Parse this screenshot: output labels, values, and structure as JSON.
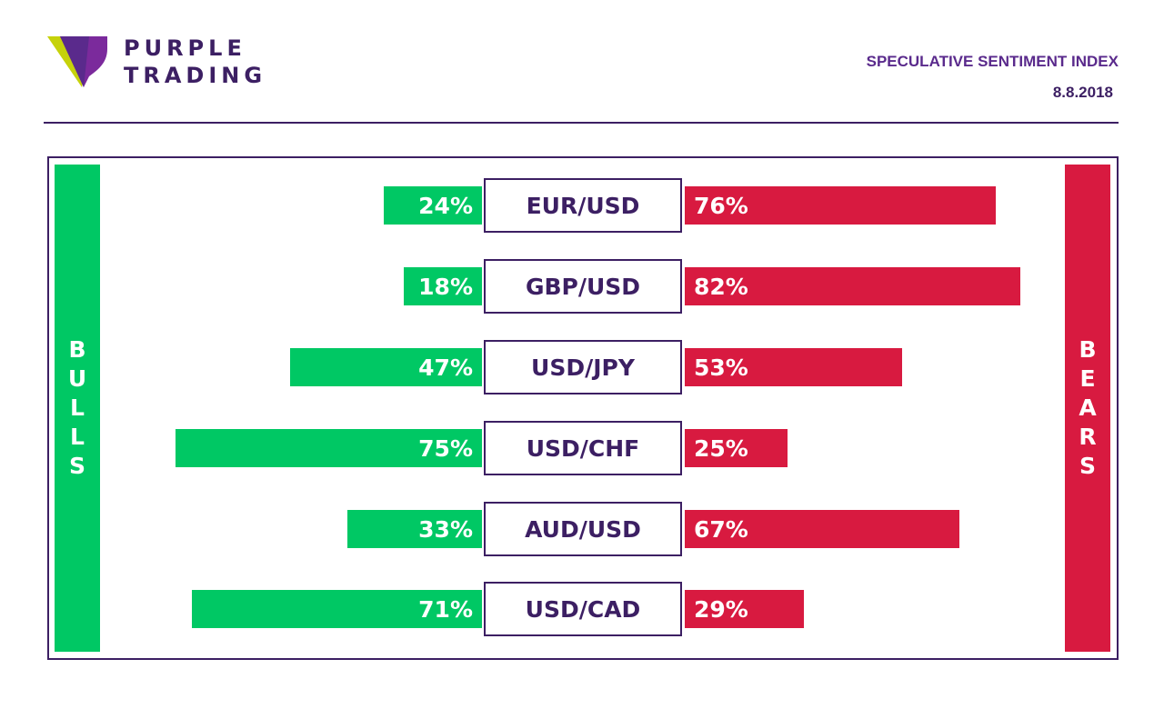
{
  "brand": {
    "line1": "PURPLE",
    "line2": "TRADING",
    "logo_icon": "purple-trading-logo-icon"
  },
  "header": {
    "title": "SPECULATIVE SENTIMENT INDEX",
    "date": "8.8.2018"
  },
  "sides": {
    "bulls_label": "BULLS",
    "bears_label": "BEARS"
  },
  "colors": {
    "bulls": "#00c864",
    "bears": "#d81a40",
    "brand": "#3c1f63"
  },
  "chart_data": {
    "type": "bar",
    "categories": [
      "EUR/USD",
      "GBP/USD",
      "USD/JPY",
      "USD/CHF",
      "AUD/USD",
      "USD/CAD"
    ],
    "series": [
      {
        "name": "BULLS",
        "values": [
          24,
          18,
          47,
          75,
          33,
          71
        ],
        "labels": [
          "24%",
          "18%",
          "47%",
          "75%",
          "33%",
          "71%"
        ]
      },
      {
        "name": "BEARS",
        "values": [
          76,
          82,
          53,
          25,
          67,
          29
        ],
        "labels": [
          "76%",
          "82%",
          "53%",
          "25%",
          "67%",
          "29%"
        ]
      }
    ],
    "unit": "%"
  }
}
